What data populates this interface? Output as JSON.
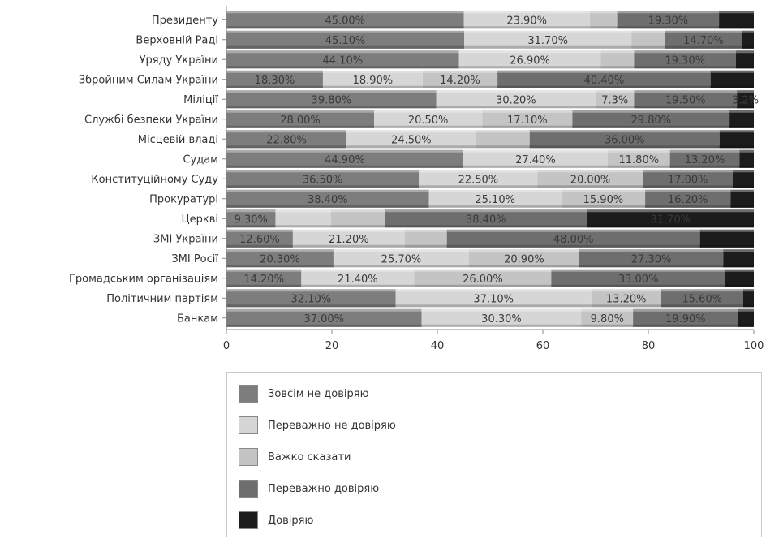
{
  "chart_data": {
    "type": "bar",
    "orientation": "horizontal",
    "stacked": true,
    "categories": [
      "Президенту",
      "Верховній Раді",
      "Уряду України",
      "Збройним Силам України",
      "Міліції",
      "Службі безпеки України",
      "Місцевій владі",
      "Судам",
      "Конституційному Суду",
      "Прокуратурі",
      "Церкві",
      "ЗМІ України",
      "ЗМІ Росії",
      "Громадським організаціям",
      "Політичним партіям",
      "Банкам"
    ],
    "series": [
      {
        "name": "Зовсім не довіряю",
        "color": "#7d7d7d",
        "values": [
          45.0,
          45.1,
          44.1,
          18.3,
          39.8,
          28.0,
          22.8,
          44.9,
          36.5,
          38.4,
          9.3,
          12.6,
          20.3,
          14.2,
          32.1,
          37.0
        ],
        "labels": [
          "45.00%",
          "45.10%",
          "44.10%",
          "18.30%",
          "39.80%",
          "28.00%",
          "22.80%",
          "44.90%",
          "36.50%",
          "38.40%",
          "9.30%",
          "12.60%",
          "20.30%",
          "14.20%",
          "32.10%",
          "37.00%"
        ]
      },
      {
        "name": "Переважно не довіряю",
        "color": "#d6d6d6",
        "values": [
          23.9,
          31.7,
          26.9,
          18.9,
          30.2,
          20.5,
          24.5,
          27.4,
          22.5,
          25.1,
          10.5,
          21.2,
          25.7,
          21.4,
          37.1,
          30.3
        ],
        "labels": [
          "23.90%",
          "31.70%",
          "26.90%",
          "18.90%",
          "30.20%",
          "20.50%",
          "24.50%",
          "27.40%",
          "22.50%",
          "25.10%",
          "",
          "21.20%",
          "25.70%",
          "21.40%",
          "37.10%",
          "30.30%"
        ]
      },
      {
        "name": "Важко сказати",
        "color": "#c4c4c4",
        "values": [
          5.2,
          6.3,
          6.3,
          14.2,
          7.3,
          17.1,
          10.2,
          11.8,
          20.0,
          15.9,
          10.2,
          8.0,
          20.9,
          26.0,
          13.2,
          9.8
        ],
        "labels": [
          "",
          "",
          "",
          "14.20%",
          "7.3%",
          "17.10%",
          "",
          "11.80%",
          "20.00%",
          "15.90%",
          "",
          "",
          "20.90%",
          "26.00%",
          "13.20%",
          "9.80%"
        ]
      },
      {
        "name": "Переважно довіряю",
        "color": "#6e6e6e",
        "values": [
          19.3,
          14.7,
          19.3,
          40.4,
          19.5,
          29.8,
          36.0,
          13.2,
          17.0,
          16.2,
          38.4,
          48.0,
          27.3,
          33.0,
          15.6,
          19.9
        ],
        "labels": [
          "19.30%",
          "14.70%",
          "19.30%",
          "40.40%",
          "19.50%",
          "29.80%",
          "36.00%",
          "13.20%",
          "17.00%",
          "16.20%",
          "38.40%",
          "48.00%",
          "27.30%",
          "33.00%",
          "15.60%",
          "19.90%"
        ]
      },
      {
        "name": "Довіряю",
        "color": "#1c1c1c",
        "values": [
          6.6,
          2.2,
          3.4,
          8.2,
          3.2,
          4.6,
          6.5,
          2.7,
          4.0,
          4.4,
          31.7,
          10.2,
          5.8,
          5.4,
          2.0,
          3.0
        ],
        "labels": [
          "",
          "",
          "",
          "",
          "3.2%",
          "",
          "",
          "",
          "",
          "",
          "31.70%",
          "",
          "",
          "",
          "",
          ""
        ]
      }
    ],
    "xlim": [
      0,
      100
    ],
    "xticks": [
      "0",
      "20",
      "40",
      "60",
      "80",
      "100"
    ],
    "grid": false,
    "legend_position": "bottom"
  }
}
